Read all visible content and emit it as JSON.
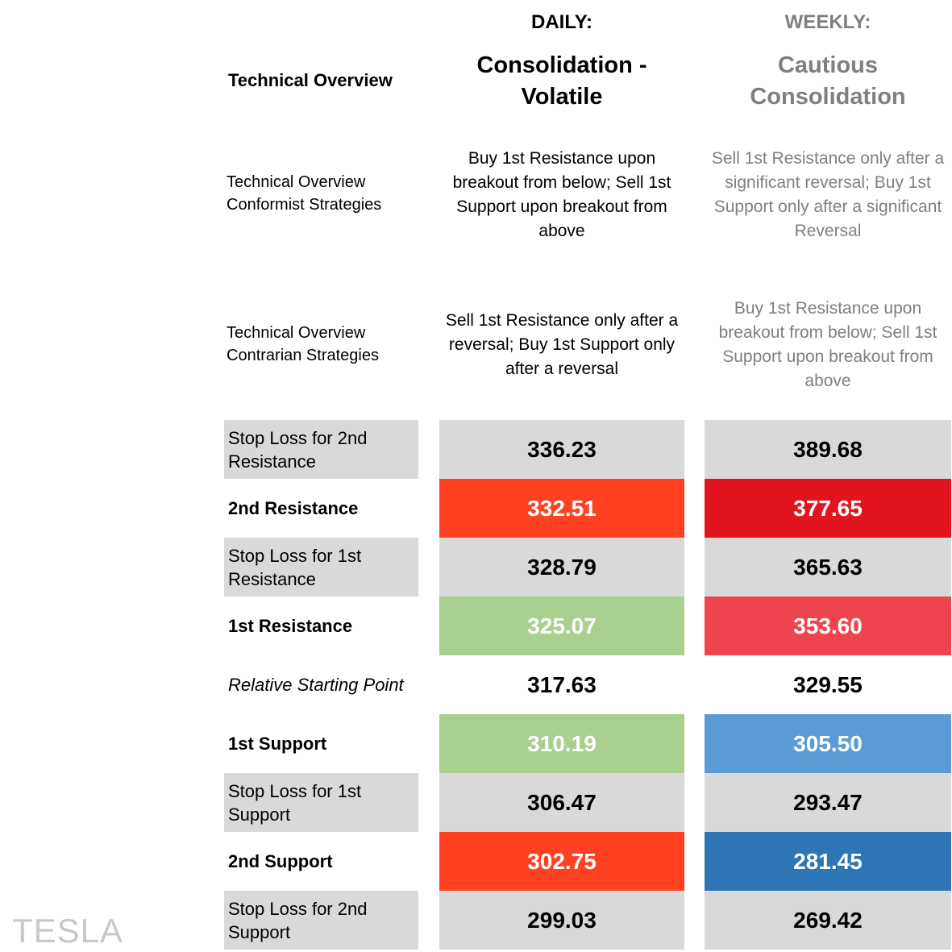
{
  "header": {
    "daily": "DAILY:",
    "weekly": "WEEKLY:"
  },
  "technical_overview": {
    "label": "Technical Overview",
    "daily": "Consolidation - Volatile",
    "weekly": "Cautious Consolidation"
  },
  "conformist": {
    "label_line1": "Technical Overview",
    "label_line2": "Conformist Strategies",
    "daily": "Buy 1st Resistance upon breakout from below; Sell 1st Support upon breakout from above",
    "weekly": "Sell 1st Resistance only after a significant reversal; Buy 1st Support only after a significant Reversal"
  },
  "contrarian": {
    "label_line1": "Technical Overview",
    "label_line2": "Contrarian Strategies",
    "daily": "Sell 1st Resistance only after a reversal; Buy 1st Support only after a reversal",
    "weekly": "Buy 1st Resistance upon breakout from below; Sell 1st Support upon breakout from above"
  },
  "rows": [
    {
      "label": "Stop Loss for 2nd Resistance",
      "daily": "336.23",
      "weekly": "389.68",
      "daily_bg": "#d9d9d9",
      "weekly_bg": "#d9d9d9",
      "daily_fg": "#000000",
      "weekly_fg": "#000000"
    },
    {
      "label": "2nd Resistance",
      "daily": "332.51",
      "weekly": "377.65",
      "daily_bg": "#ff4122",
      "weekly_bg": "#e2151f",
      "daily_fg": "#ffffff",
      "weekly_fg": "#ffffff"
    },
    {
      "label": "Stop Loss for 1st Resistance",
      "daily": "328.79",
      "weekly": "365.63",
      "daily_bg": "#d9d9d9",
      "weekly_bg": "#d9d9d9",
      "daily_fg": "#000000",
      "weekly_fg": "#000000"
    },
    {
      "label": "1st Resistance",
      "daily": "325.07",
      "weekly": "353.60",
      "daily_bg": "#a9d08e",
      "weekly_bg": "#ee444d",
      "daily_fg": "#ffffff",
      "weekly_fg": "#ffffff"
    },
    {
      "label": "Relative Starting Point",
      "daily": "317.63",
      "weekly": "329.55",
      "daily_bg": "#ffffff",
      "weekly_bg": "#ffffff",
      "daily_fg": "#000000",
      "weekly_fg": "#000000"
    },
    {
      "label": "1st Support",
      "daily": "310.19",
      "weekly": "305.50",
      "daily_bg": "#a9d08e",
      "weekly_bg": "#5b9bd5",
      "daily_fg": "#ffffff",
      "weekly_fg": "#ffffff"
    },
    {
      "label": "Stop Loss for 1st Support",
      "daily": "306.47",
      "weekly": "293.47",
      "daily_bg": "#d9d9d9",
      "weekly_bg": "#d9d9d9",
      "daily_fg": "#000000",
      "weekly_fg": "#000000"
    },
    {
      "label": "2nd Support",
      "daily": "302.75",
      "weekly": "281.45",
      "daily_bg": "#ff4122",
      "weekly_bg": "#2e75b6",
      "daily_fg": "#ffffff",
      "weekly_fg": "#ffffff"
    },
    {
      "label": "Stop Loss for 2nd Support",
      "daily": "299.03",
      "weekly": "269.42",
      "daily_bg": "#d9d9d9",
      "weekly_bg": "#d9d9d9",
      "daily_fg": "#000000",
      "weekly_fg": "#000000"
    }
  ],
  "watermark": "TESLA"
}
